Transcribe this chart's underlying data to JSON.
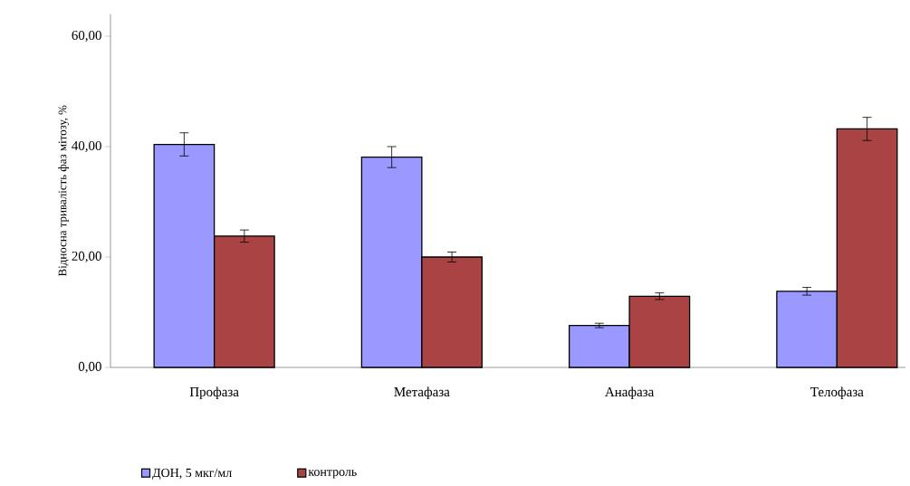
{
  "chart_data": {
    "type": "bar",
    "ylabel": "Відносна тривалість фаз мітозу, %",
    "categories": [
      "Профаза",
      "Метафаза",
      "Анафаза",
      "Телофаза"
    ],
    "series": [
      {
        "name": "ДОН, 5 мкг/мл",
        "color": "#9999ff",
        "values": [
          40.4,
          38.1,
          7.6,
          13.8
        ],
        "errors": [
          2.1,
          1.9,
          0.4,
          0.7
        ]
      },
      {
        "name": "контроль",
        "color": "#aa4444",
        "values": [
          23.8,
          20.0,
          12.9,
          43.2
        ],
        "errors": [
          1.1,
          0.9,
          0.6,
          2.1
        ]
      }
    ],
    "ylim": [
      0,
      64
    ],
    "yticks": [
      {
        "value": 0,
        "label": "0,00"
      },
      {
        "value": 20,
        "label": "20,00"
      },
      {
        "value": 40,
        "label": "40,00"
      },
      {
        "value": 60,
        "label": "60,00"
      }
    ],
    "grid": false,
    "legend": "bottom"
  }
}
